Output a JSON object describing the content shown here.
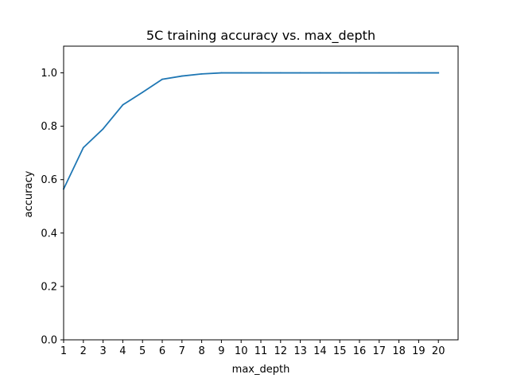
{
  "chart_data": {
    "type": "line",
    "title": "5C training accuracy vs. max_depth",
    "xlabel": "max_depth",
    "ylabel": "accuracy",
    "xlim": [
      1,
      21
    ],
    "ylim": [
      0,
      1.1
    ],
    "xticks": [
      1,
      2,
      3,
      4,
      5,
      6,
      7,
      8,
      9,
      10,
      11,
      12,
      13,
      14,
      15,
      16,
      17,
      18,
      19,
      20
    ],
    "yticks": [
      0.0,
      0.2,
      0.4,
      0.6,
      0.8,
      1.0
    ],
    "ytick_labels": [
      "0.0",
      "0.2",
      "0.4",
      "0.6",
      "0.8",
      "1.0"
    ],
    "grid": false,
    "series": [
      {
        "color": "#1f77b4",
        "x": [
          1,
          2,
          3,
          4,
          5,
          6,
          7,
          8,
          9,
          10,
          11,
          12,
          13,
          14,
          15,
          16,
          17,
          18,
          19,
          20
        ],
        "y": [
          0.565,
          0.72,
          0.79,
          0.88,
          0.927,
          0.976,
          0.988,
          0.996,
          1.0,
          1.0,
          1.0,
          1.0,
          1.0,
          1.0,
          1.0,
          1.0,
          1.0,
          1.0,
          1.0,
          1.0
        ]
      }
    ]
  }
}
